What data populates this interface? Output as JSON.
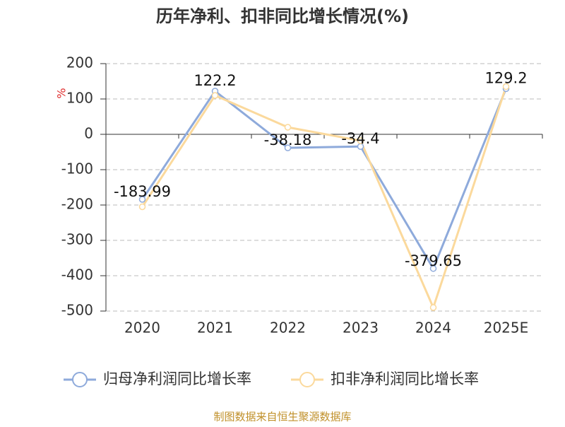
{
  "chart_data": {
    "type": "line",
    "title": "历年净利、扣非同比增长情况(%)",
    "y_label": "%",
    "categories": [
      "2020",
      "2021",
      "2022",
      "2023",
      "2024",
      "2025E"
    ],
    "series": [
      {
        "name": "归母净利润同比增长率",
        "color": "#8eaadb",
        "values": [
          -183.99,
          122.2,
          -38.18,
          -34.4,
          -379.65,
          129.2
        ],
        "show_labels": true
      },
      {
        "name": "扣非净利润同比增长率",
        "color": "#fbd99c",
        "values": [
          -205,
          110,
          20,
          -18,
          -490,
          135
        ],
        "show_labels": false
      }
    ],
    "ylim": [
      -500,
      200
    ],
    "yticks": [
      -500,
      -400,
      -300,
      -200,
      -100,
      0,
      100,
      200
    ],
    "grid": true,
    "source": "制图数据来自恒生聚源数据库"
  }
}
